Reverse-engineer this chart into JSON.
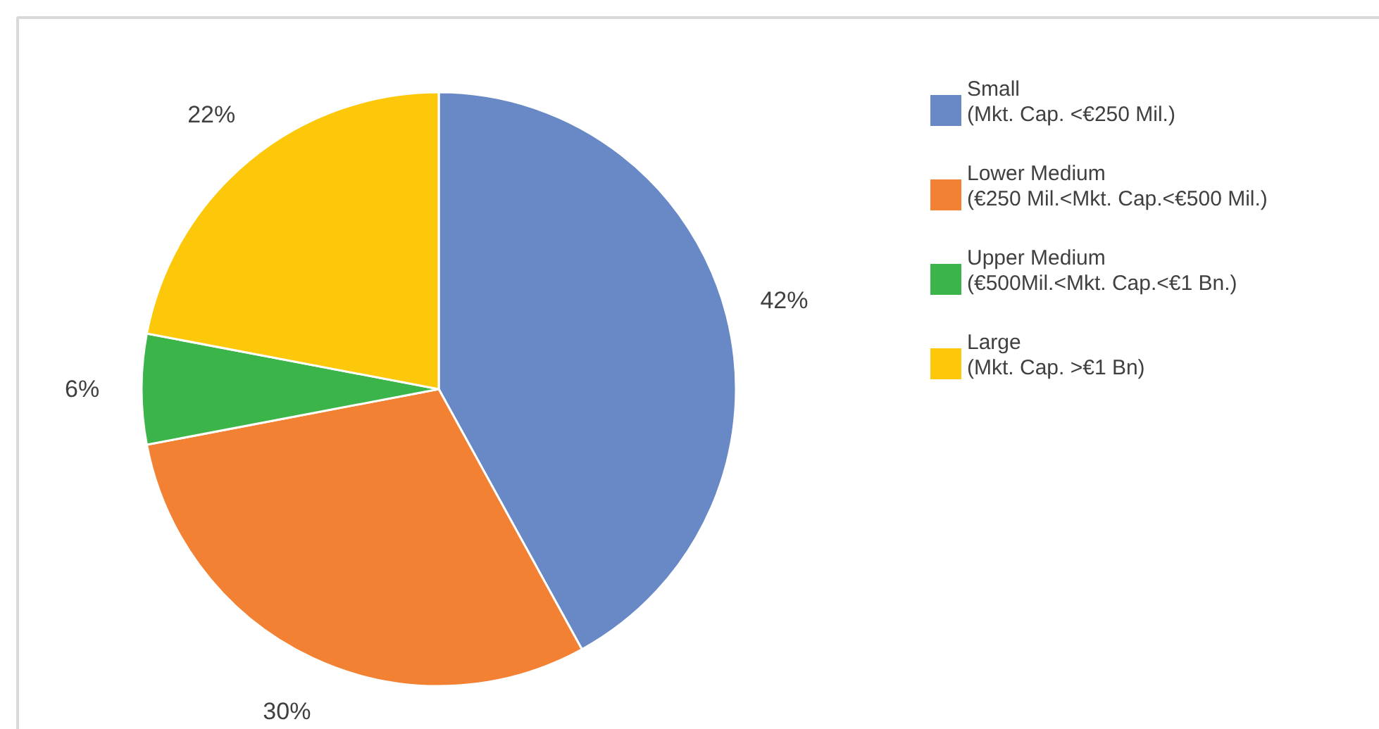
{
  "chart_data": {
    "type": "pie",
    "categories": [
      "Small\n(Mkt. Cap. <€250 Mil.)",
      "Lower Medium\n(€250 Mil.<Mkt. Cap.<€500 Mil.)",
      "Upper Medium\n(€500Mil.<Mkt. Cap.<€1 Bn.)",
      "Large\n(Mkt. Cap. >€1 Bn)"
    ],
    "values": [
      42,
      30,
      6,
      22
    ],
    "colors": [
      "#6889c6",
      "#f38133",
      "#3bb54a",
      "#fdc80a"
    ],
    "value_labels": [
      "42%",
      "30%",
      "6%",
      "22%"
    ],
    "legend": "right"
  }
}
